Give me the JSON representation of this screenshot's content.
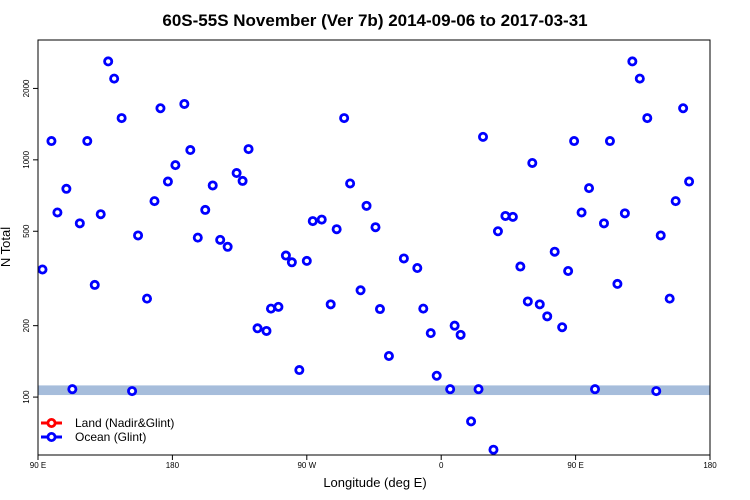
{
  "chart_data": {
    "type": "scatter",
    "title": "60S-55S November (Ver 7b)   2014-09-06 to 2017-03-31",
    "xlabel": "Longitude (deg E)",
    "ylabel": "N Total",
    "x_ticks": [
      {
        "value": 90,
        "label": "90 E"
      },
      {
        "value": 180,
        "label": "180"
      },
      {
        "value": 270,
        "label": "90 W"
      },
      {
        "value": 360,
        "label": "0"
      },
      {
        "value": 450,
        "label": "90 E"
      },
      {
        "value": 540,
        "label": "180"
      }
    ],
    "y_ticks": [
      100,
      200,
      500,
      1000,
      2000
    ],
    "y_scale": "log",
    "xlim": [
      90,
      540
    ],
    "ylim": [
      57,
      3200
    ],
    "shaded_band": {
      "y_range": [
        102,
        112
      ],
      "color": "#a6bddb"
    },
    "grid": false,
    "legend_position": "bottom-left",
    "legend": [
      {
        "label": "Land (Nadir&Glint)",
        "color": "#ff0000"
      },
      {
        "label": "Ocean (Glint)",
        "color": "#0000ff"
      }
    ],
    "series": [
      {
        "name": "Land (Nadir&Glint)",
        "color": "#ff0000",
        "points": []
      },
      {
        "name": "Ocean (Glint)",
        "color": "#0000ff",
        "points": [
          [
            93,
            345
          ],
          [
            99,
            1200
          ],
          [
            103,
            600
          ],
          [
            109,
            755
          ],
          [
            113,
            108
          ],
          [
            118,
            540
          ],
          [
            123,
            1200
          ],
          [
            128,
            297
          ],
          [
            132,
            590
          ],
          [
            137,
            2600
          ],
          [
            141,
            2200
          ],
          [
            146,
            1500
          ],
          [
            153,
            106
          ],
          [
            157,
            480
          ],
          [
            163,
            260
          ],
          [
            168,
            670
          ],
          [
            172,
            1650
          ],
          [
            177,
            810
          ],
          [
            182,
            950
          ],
          [
            188,
            1720
          ],
          [
            192,
            1100
          ],
          [
            197,
            470
          ],
          [
            202,
            615
          ],
          [
            207,
            780
          ],
          [
            212,
            460
          ],
          [
            217,
            430
          ],
          [
            223,
            880
          ],
          [
            227,
            815
          ],
          [
            231,
            1110
          ],
          [
            237,
            195
          ],
          [
            243,
            190
          ],
          [
            246,
            236
          ],
          [
            251,
            240
          ],
          [
            256,
            395
          ],
          [
            260,
            370
          ],
          [
            265,
            130
          ],
          [
            270,
            375
          ],
          [
            274,
            552
          ],
          [
            280,
            560
          ],
          [
            286,
            246
          ],
          [
            290,
            510
          ],
          [
            295,
            1500
          ],
          [
            299,
            795
          ],
          [
            306,
            282
          ],
          [
            310,
            640
          ],
          [
            316,
            520
          ],
          [
            319,
            235
          ],
          [
            325,
            149
          ],
          [
            335,
            384
          ],
          [
            344,
            350
          ],
          [
            348,
            236
          ],
          [
            353,
            186
          ],
          [
            357,
            123
          ],
          [
            366,
            108
          ],
          [
            369,
            200
          ],
          [
            373,
            183
          ],
          [
            380,
            79
          ],
          [
            385,
            108
          ],
          [
            388,
            1250
          ],
          [
            395,
            60
          ],
          [
            398,
            500
          ],
          [
            403,
            580
          ],
          [
            408,
            575
          ],
          [
            413,
            355
          ],
          [
            418,
            253
          ],
          [
            421,
            970
          ],
          [
            426,
            246
          ],
          [
            431,
            219
          ],
          [
            436,
            410
          ],
          [
            441,
            197
          ],
          [
            445,
            340
          ],
          [
            449,
            1200
          ],
          [
            454,
            600
          ],
          [
            459,
            760
          ],
          [
            463,
            108
          ],
          [
            469,
            540
          ],
          [
            473,
            1200
          ],
          [
            478,
            300
          ],
          [
            483,
            595
          ],
          [
            488,
            2600
          ],
          [
            493,
            2200
          ],
          [
            498,
            1500
          ],
          [
            504,
            106
          ],
          [
            507,
            480
          ],
          [
            513,
            260
          ],
          [
            517,
            670
          ],
          [
            522,
            1650
          ],
          [
            526,
            810
          ]
        ]
      }
    ]
  }
}
